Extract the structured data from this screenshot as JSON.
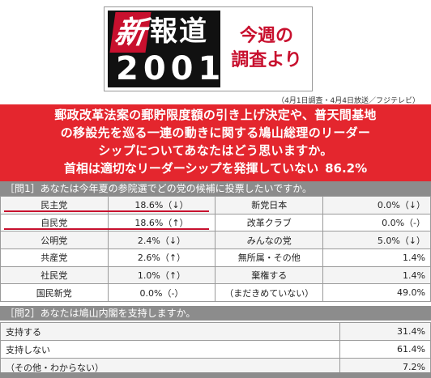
{
  "logo": {
    "shin": "新",
    "hodo": "報道",
    "year": "2001",
    "caption_line1": "今週の",
    "caption_line2": "調査より"
  },
  "source_note": "（4月1日調査・4月4日放送／フジテレビ）",
  "headline": {
    "question_lines": [
      "郵政改革法案の郵貯限度額の引き上げ決定や、普天間基地",
      "の移設先を巡る一連の動きに関する鳩山総理のリーダー",
      "シップについてあなたはどう思いますか。"
    ],
    "answer_label": "首相は適切なリーダーシップを発揮していない",
    "answer_value": "86.2%"
  },
  "q1": {
    "title": "［問1］あなたは今年夏の参院選でどの党の候補に投票したいですか。",
    "rows": [
      {
        "party_a": "民主党",
        "value_a": "18.6%（↓）",
        "party_b": "新党日本",
        "value_b": "0.0%（↓）"
      },
      {
        "party_a": "自民党",
        "value_a": "18.6%（↑）",
        "party_b": "改革クラブ",
        "value_b": "0.0%（-）"
      },
      {
        "party_a": "公明党",
        "value_a": "2.4%（↓）",
        "party_b": "みんなの党",
        "value_b": "5.0%（↓）"
      },
      {
        "party_a": "共産党",
        "value_a": "2.6%（↑）",
        "party_b": "無所属・その他",
        "value_b": "1.4%"
      },
      {
        "party_a": "社民党",
        "value_a": "1.0%（↑）",
        "party_b": "棄権する",
        "value_b": "1.4%"
      },
      {
        "party_a": "国民新党",
        "value_a": "0.0%（-）",
        "party_b": "（まだきめていない）",
        "value_b": "49.0%"
      }
    ]
  },
  "q2": {
    "title": "［問2］あなたは鳩山内閣を支持しますか。",
    "rows": [
      {
        "label": "支持する",
        "value": "31.4%"
      },
      {
        "label": "支持しない",
        "value": "61.4%"
      },
      {
        "label": "（その他・わからない）",
        "value": "7.2%"
      }
    ]
  },
  "colors": {
    "banner_red": "#e4262e",
    "header_gray": "#8c8c8c",
    "underline_red": "#c8102e"
  }
}
